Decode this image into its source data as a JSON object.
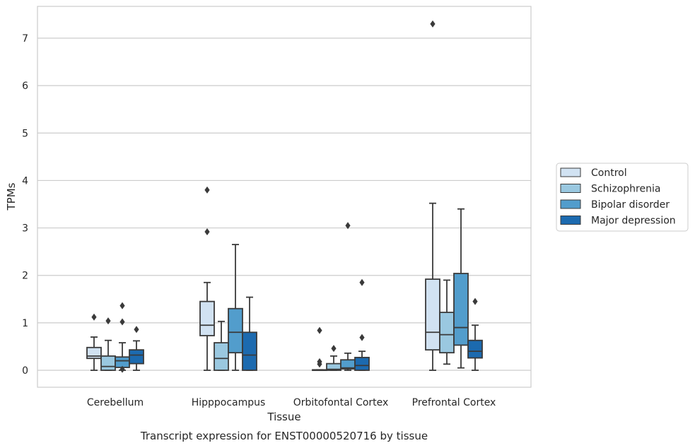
{
  "caption": "Transcript expression for ENST00000520716 by tissue",
  "chart_data": {
    "type": "box",
    "xlabel": "Tissue",
    "ylabel": "TPMs",
    "ylim": [
      -0.35,
      7.7
    ],
    "yticks": [
      0,
      1,
      2,
      3,
      4,
      5,
      6,
      7
    ],
    "grid": "horizontal",
    "legend_position": "right",
    "categories": [
      "Cerebellum",
      "Hipppocampus",
      "Orbitofontal Cortex",
      "Prefrontal Cortex"
    ],
    "series": [
      {
        "name": "Control",
        "color": "#d1e2f2",
        "boxes": [
          {
            "whislo": 0.0,
            "q1": 0.25,
            "med": 0.3,
            "q3": 0.48,
            "whishi": 0.7,
            "fliers": [
              1.12
            ]
          },
          {
            "whislo": 0.0,
            "q1": 0.73,
            "med": 0.95,
            "q3": 1.45,
            "whishi": 1.85,
            "fliers": [
              2.92,
              3.8
            ]
          },
          {
            "whislo": 0.0,
            "q1": 0.0,
            "med": 0.0,
            "q3": 0.01,
            "whishi": 0.01,
            "fliers": [
              0.13,
              0.18,
              0.84
            ]
          },
          {
            "whislo": 0.0,
            "q1": 0.43,
            "med": 0.8,
            "q3": 1.92,
            "whishi": 3.52,
            "fliers": [
              7.3
            ]
          }
        ]
      },
      {
        "name": "Schizophrenia",
        "color": "#9ac8e0",
        "boxes": [
          {
            "whislo": 0.0,
            "q1": 0.0,
            "med": 0.08,
            "q3": 0.3,
            "whishi": 0.63,
            "fliers": [
              1.04
            ]
          },
          {
            "whislo": 0.0,
            "q1": 0.0,
            "med": 0.25,
            "q3": 0.58,
            "whishi": 1.03,
            "fliers": []
          },
          {
            "whislo": 0.0,
            "q1": 0.0,
            "med": 0.02,
            "q3": 0.14,
            "whishi": 0.3,
            "fliers": [
              0.46
            ]
          },
          {
            "whislo": 0.13,
            "q1": 0.37,
            "med": 0.75,
            "q3": 1.22,
            "whishi": 1.9,
            "fliers": []
          }
        ]
      },
      {
        "name": "Bipolar disorder",
        "color": "#529dcc",
        "boxes": [
          {
            "whislo": 0.0,
            "q1": 0.06,
            "med": 0.2,
            "q3": 0.28,
            "whishi": 0.58,
            "fliers": [
              0.02,
              1.02,
              1.36
            ]
          },
          {
            "whislo": 0.0,
            "q1": 0.37,
            "med": 0.8,
            "q3": 1.3,
            "whishi": 2.65,
            "fliers": []
          },
          {
            "whislo": 0.0,
            "q1": 0.03,
            "med": 0.05,
            "q3": 0.22,
            "whishi": 0.36,
            "fliers": [
              3.05
            ]
          },
          {
            "whislo": 0.05,
            "q1": 0.53,
            "med": 0.9,
            "q3": 2.04,
            "whishi": 3.4,
            "fliers": []
          }
        ]
      },
      {
        "name": "Major depression",
        "color": "#1c6aaf",
        "boxes": [
          {
            "whislo": 0.0,
            "q1": 0.14,
            "med": 0.32,
            "q3": 0.43,
            "whishi": 0.62,
            "fliers": [
              0.86
            ]
          },
          {
            "whislo": 0.0,
            "q1": 0.0,
            "med": 0.32,
            "q3": 0.8,
            "whishi": 1.54,
            "fliers": []
          },
          {
            "whislo": 0.0,
            "q1": 0.0,
            "med": 0.1,
            "q3": 0.27,
            "whishi": 0.4,
            "fliers": [
              0.69,
              1.85
            ]
          },
          {
            "whislo": 0.0,
            "q1": 0.26,
            "med": 0.4,
            "q3": 0.63,
            "whishi": 0.95,
            "fliers": [
              1.45
            ]
          }
        ]
      }
    ]
  }
}
